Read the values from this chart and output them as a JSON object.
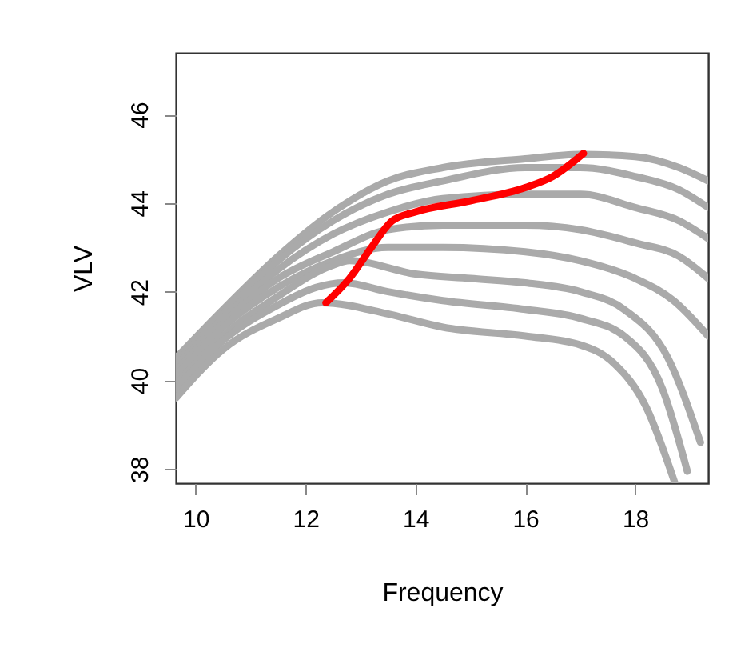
{
  "chart_data": {
    "type": "line",
    "xlabel": "Frequency",
    "ylabel": "VLV",
    "xlim": [
      9.64,
      19.33
    ],
    "ylim": [
      37.68,
      47.39
    ],
    "xticks": [
      10,
      12,
      14,
      16,
      18
    ],
    "yticks": [
      38,
      40,
      42,
      44,
      46
    ],
    "grid": false,
    "legend": false,
    "series": [
      {
        "color": "#aaaaaa",
        "x": [
          9.64,
          10.5,
          11.5,
          12.5,
          13.5,
          14.5,
          16,
          17,
          18,
          18.8,
          19.33
        ],
        "values": [
          40.5,
          41.6,
          42.8,
          43.8,
          44.5,
          44.8,
          45.0,
          45.1,
          45.05,
          44.8,
          44.5
        ]
      },
      {
        "color": "#aaaaaa",
        "x": [
          9.64,
          10.5,
          11.5,
          12.5,
          13.5,
          14.5,
          16,
          17,
          18,
          18.8,
          19.33
        ],
        "values": [
          40.4,
          41.5,
          42.7,
          43.6,
          44.2,
          44.5,
          44.8,
          44.8,
          44.6,
          44.3,
          43.9
        ]
      },
      {
        "color": "#aaaaaa",
        "x": [
          9.64,
          10.5,
          11.5,
          12.5,
          13.5,
          14.5,
          16,
          17,
          18,
          18.8,
          19.33
        ],
        "values": [
          40.3,
          41.4,
          42.5,
          43.3,
          43.8,
          44.1,
          44.2,
          44.2,
          43.9,
          43.6,
          43.2
        ]
      },
      {
        "color": "#aaaaaa",
        "x": [
          9.64,
          10.5,
          11.5,
          12.5,
          13.5,
          14.5,
          16,
          17,
          18,
          18.8,
          19.33
        ],
        "values": [
          40.2,
          41.3,
          42.3,
          42.9,
          43.4,
          43.5,
          43.5,
          43.4,
          43.1,
          42.8,
          42.3
        ]
      },
      {
        "color": "#aaaaaa",
        "x": [
          9.64,
          10.5,
          11.5,
          12.5,
          13.5,
          14.5,
          16,
          17,
          18,
          18.7,
          19.33
        ],
        "values": [
          40.1,
          41.2,
          42.1,
          42.7,
          43.0,
          43.0,
          42.9,
          42.7,
          42.3,
          41.8,
          41.0
        ]
      },
      {
        "color": "#aaaaaa",
        "x": [
          9.64,
          10.5,
          11.5,
          12.5,
          12.8,
          14,
          15,
          16,
          17,
          17.8,
          18.6,
          19.19
        ],
        "values": [
          39.9,
          41.0,
          41.9,
          42.6,
          42.7,
          42.4,
          42.3,
          42.2,
          42.0,
          41.6,
          40.5,
          38.6
        ]
      },
      {
        "color": "#aaaaaa",
        "x": [
          9.64,
          10.5,
          11.5,
          12.2,
          12.7,
          13.5,
          14.5,
          16,
          17,
          17.8,
          18.5,
          18.95
        ],
        "values": [
          39.8,
          40.9,
          41.7,
          42.1,
          42.2,
          42.0,
          41.8,
          41.6,
          41.4,
          41.0,
          39.8,
          37.95
        ]
      },
      {
        "color": "#aaaaaa",
        "x": [
          9.64,
          10.5,
          11.5,
          12.3,
          13.5,
          14.5,
          16,
          17,
          17.6,
          18.2,
          18.72
        ],
        "values": [
          39.6,
          40.7,
          41.4,
          41.75,
          41.5,
          41.2,
          41.0,
          40.8,
          40.4,
          39.4,
          37.7
        ]
      },
      {
        "color": "#ff0000",
        "x": [
          12.37,
          12.8,
          13.2,
          13.58,
          14,
          15,
          16,
          16.5,
          17.06
        ],
        "values": [
          41.75,
          42.3,
          43.0,
          43.6,
          43.8,
          44.05,
          44.35,
          44.6,
          45.12
        ]
      }
    ]
  }
}
